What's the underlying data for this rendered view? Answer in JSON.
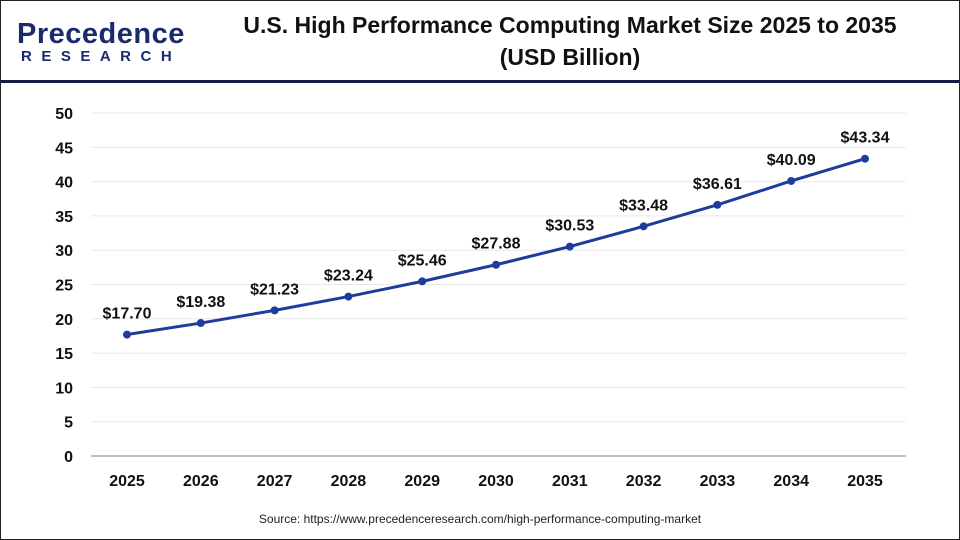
{
  "logo": {
    "text_main": "Precedence",
    "text_sub": "RESEARCH"
  },
  "title": "U.S. High Performance Computing Market Size 2025 to 2035",
  "subtitle": "(USD Billion)",
  "source": "Source: https://www.precedenceresearch.com/high-performance-computing-market",
  "colors": {
    "line": "#1f3c9c",
    "grid": "#e8e8e8",
    "header_rule": "#141a45"
  },
  "chart_data": {
    "type": "line",
    "title": "U.S. High Performance Computing Market Size 2025 to 2035 (USD Billion)",
    "categories": [
      "2025",
      "2026",
      "2027",
      "2028",
      "2029",
      "2030",
      "2031",
      "2032",
      "2033",
      "2034",
      "2035"
    ],
    "values": [
      17.7,
      19.38,
      21.23,
      23.24,
      25.46,
      27.88,
      30.53,
      33.48,
      36.61,
      40.09,
      43.34
    ],
    "data_labels": [
      "$17.70",
      "$19.38",
      "$21.23",
      "$23.24",
      "$25.46",
      "$27.88",
      "$30.53",
      "$33.48",
      "$36.61",
      "$40.09",
      "$43.34"
    ],
    "ylim": [
      0,
      50
    ],
    "yticks": [
      "0",
      "5",
      "10",
      "15",
      "20",
      "25",
      "30",
      "35",
      "40",
      "45",
      "50"
    ],
    "grid": true,
    "legend": "none"
  }
}
